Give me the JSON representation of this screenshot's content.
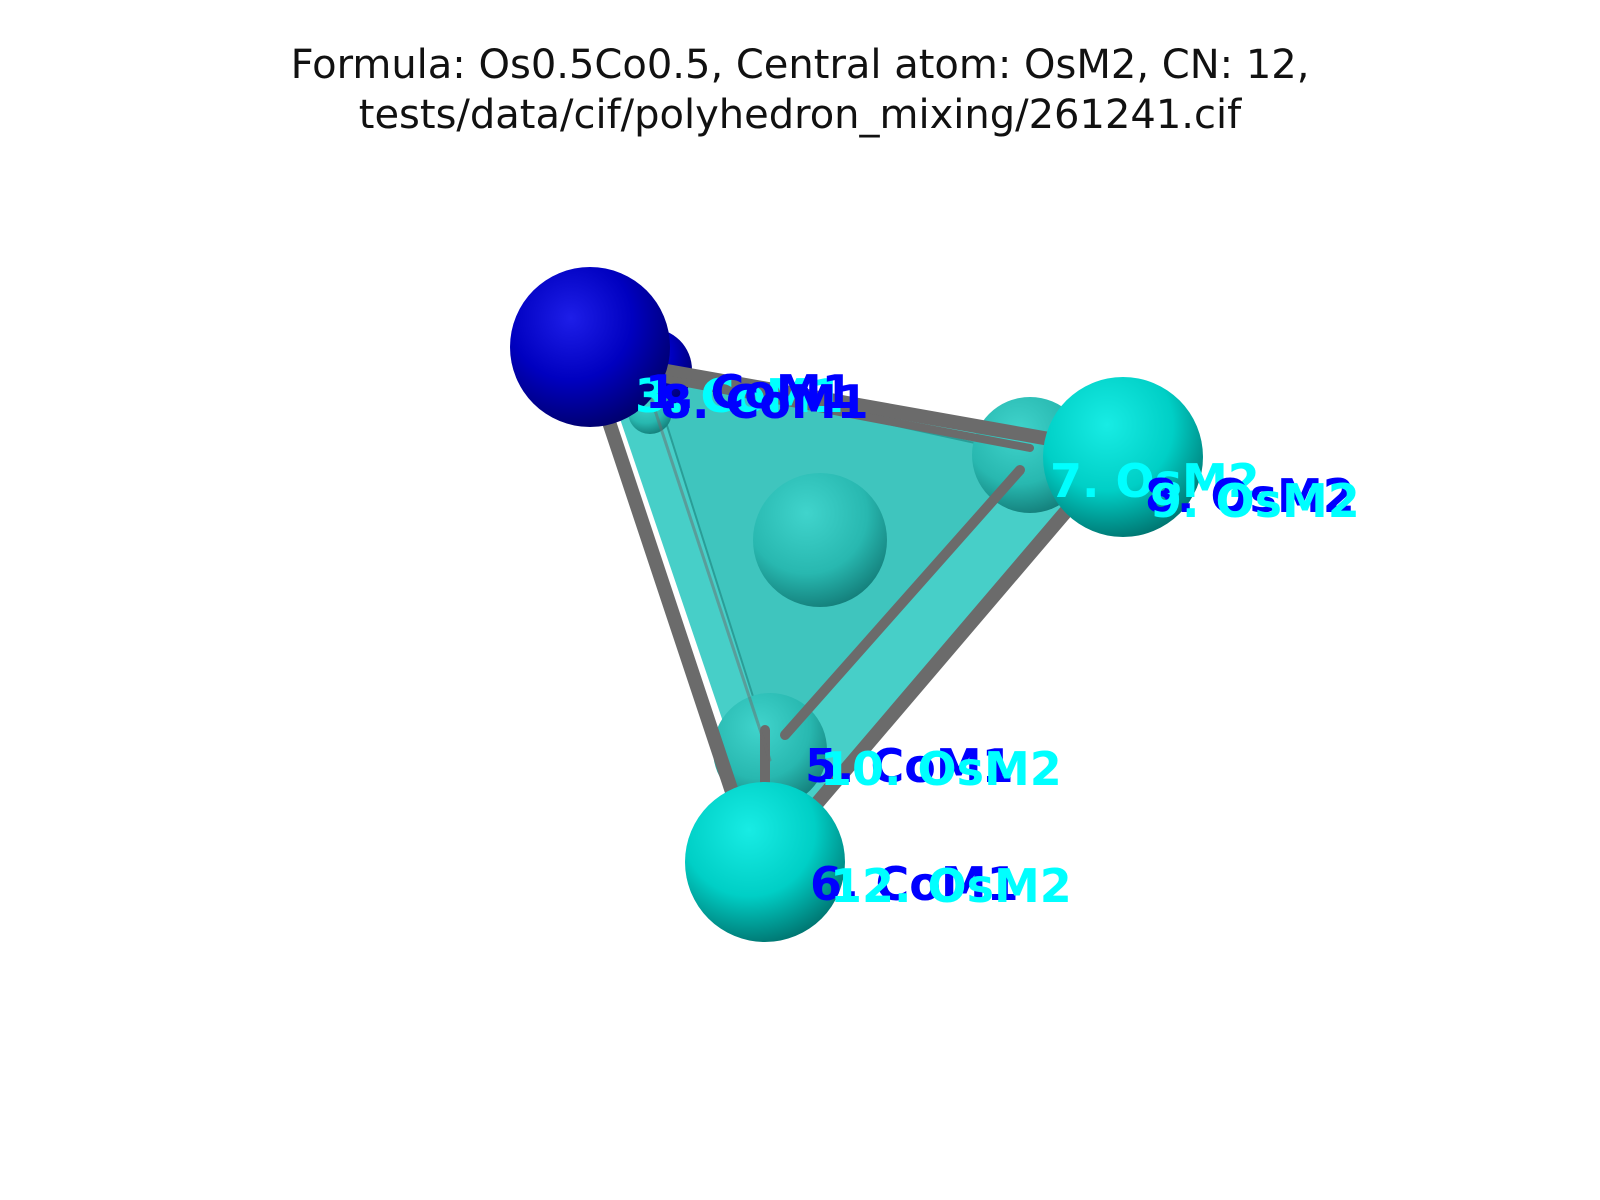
{
  "title": {
    "line1": "Formula: Os0.5Co0.5, Central atom: OsM2, CN: 12,",
    "line2": "tests/data/cif/polyhedron_mixing/261241.cif"
  },
  "colors": {
    "background": "#ffffff",
    "co_atom": "#0000c8",
    "os_atom": "#00d8d0",
    "co_label": "#0000ff",
    "os_label": "#00ffff",
    "edge": "#6b6b6b",
    "face": "#2ec8c0"
  },
  "atoms": [
    {
      "id": "co-back-1",
      "element": "Co",
      "color_key": "co_atom"
    },
    {
      "id": "co-front-1",
      "element": "Co",
      "color_key": "co_atom"
    },
    {
      "id": "os-top-right-back",
      "element": "Os",
      "color_key": "os_atom"
    },
    {
      "id": "os-top-right-front",
      "element": "Os",
      "color_key": "os_atom"
    },
    {
      "id": "os-center",
      "element": "Os",
      "color_key": "os_atom"
    },
    {
      "id": "os-bottom-back",
      "element": "Os",
      "color_key": "os_atom"
    },
    {
      "id": "os-bottom-front",
      "element": "Os",
      "color_key": "os_atom"
    },
    {
      "id": "os-left-small",
      "element": "Os",
      "color_key": "os_atom"
    }
  ],
  "labels": [
    {
      "text": "3. CoM1",
      "color_key": "os_label"
    },
    {
      "text": "1. CoM1",
      "color_key": "co_label"
    },
    {
      "text": "8. CoM1",
      "color_key": "co_label"
    },
    {
      "text": "7. OsM2",
      "color_key": "os_label"
    },
    {
      "text": "8. OsM2",
      "color_key": "co_label"
    },
    {
      "text": "9. OsM2",
      "color_key": "os_label"
    },
    {
      "text": "5. CoM1",
      "color_key": "co_label"
    },
    {
      "text": "10. OsM2",
      "color_key": "os_label"
    },
    {
      "text": "6. CoM1",
      "color_key": "co_label"
    },
    {
      "text": "12. OsM2",
      "color_key": "os_label"
    }
  ]
}
